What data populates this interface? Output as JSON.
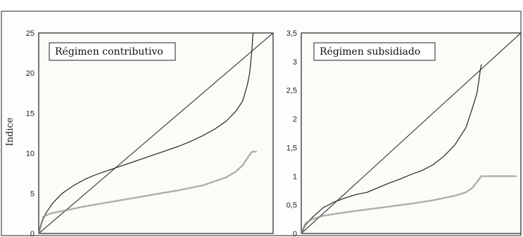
{
  "chart_data": [
    {
      "type": "line",
      "title": "Régimen contributivo",
      "ylabel": "Indice",
      "xlabel": "",
      "ylim": [
        0,
        25
      ],
      "yticks": [
        "0",
        "5",
        "10",
        "15",
        "20",
        "25"
      ],
      "grid": false,
      "series": [
        {
          "style": "diagonal",
          "x": [
            0,
            1
          ],
          "values": [
            0,
            25
          ]
        },
        {
          "style": "dark",
          "x": [
            0,
            0.01,
            0.03,
            0.06,
            0.1,
            0.15,
            0.2,
            0.25,
            0.3,
            0.35,
            0.4,
            0.45,
            0.5,
            0.55,
            0.6,
            0.65,
            0.7,
            0.75,
            0.8,
            0.84,
            0.87,
            0.89,
            0.9,
            0.905,
            0.91,
            0.913,
            0.915
          ],
          "values": [
            0,
            1.2,
            2.5,
            3.8,
            5.0,
            6.0,
            6.8,
            7.4,
            7.9,
            8.4,
            8.9,
            9.4,
            9.9,
            10.4,
            10.9,
            11.5,
            12.2,
            13.0,
            14.0,
            15.2,
            16.5,
            18.5,
            20.0,
            21.5,
            23.0,
            24.5,
            25.0
          ]
        },
        {
          "style": "light",
          "x": [
            0,
            0.02,
            0.05,
            0.1,
            0.2,
            0.3,
            0.4,
            0.5,
            0.6,
            0.7,
            0.75,
            0.8,
            0.84,
            0.87,
            0.89,
            0.91,
            0.93
          ],
          "values": [
            0,
            2.1,
            2.5,
            2.8,
            3.4,
            3.9,
            4.4,
            4.9,
            5.4,
            6.0,
            6.5,
            7.0,
            7.7,
            8.5,
            9.4,
            10.2,
            10.2
          ]
        }
      ]
    },
    {
      "type": "line",
      "title": "Régimen subsidiado",
      "ylabel": "",
      "xlabel": "",
      "ylim": [
        0,
        3.5
      ],
      "yticks": [
        "0",
        "0,5",
        "1",
        "1,5",
        "2",
        "2,5",
        "3",
        "3,5"
      ],
      "grid": false,
      "series": [
        {
          "style": "diagonal",
          "x": [
            0,
            1
          ],
          "values": [
            0,
            3.5
          ]
        },
        {
          "style": "dark",
          "x": [
            0,
            0.02,
            0.05,
            0.1,
            0.15,
            0.2,
            0.25,
            0.3,
            0.35,
            0.4,
            0.45,
            0.5,
            0.55,
            0.6,
            0.65,
            0.7,
            0.75,
            0.78,
            0.8,
            0.81,
            0.815,
            0.82
          ],
          "values": [
            0,
            0.15,
            0.28,
            0.45,
            0.55,
            0.62,
            0.68,
            0.72,
            0.8,
            0.88,
            0.95,
            1.03,
            1.1,
            1.2,
            1.35,
            1.55,
            1.85,
            2.2,
            2.45,
            2.7,
            2.85,
            2.95
          ]
        },
        {
          "style": "light",
          "x": [
            0,
            0.02,
            0.05,
            0.1,
            0.2,
            0.3,
            0.4,
            0.5,
            0.6,
            0.7,
            0.75,
            0.78,
            0.8,
            0.82,
            0.86,
            0.9,
            0.95,
            0.98
          ],
          "values": [
            0,
            0.18,
            0.25,
            0.31,
            0.37,
            0.42,
            0.47,
            0.52,
            0.58,
            0.66,
            0.72,
            0.8,
            0.9,
            1.0,
            1.0,
            1.0,
            1.0,
            1.0
          ]
        }
      ]
    }
  ]
}
